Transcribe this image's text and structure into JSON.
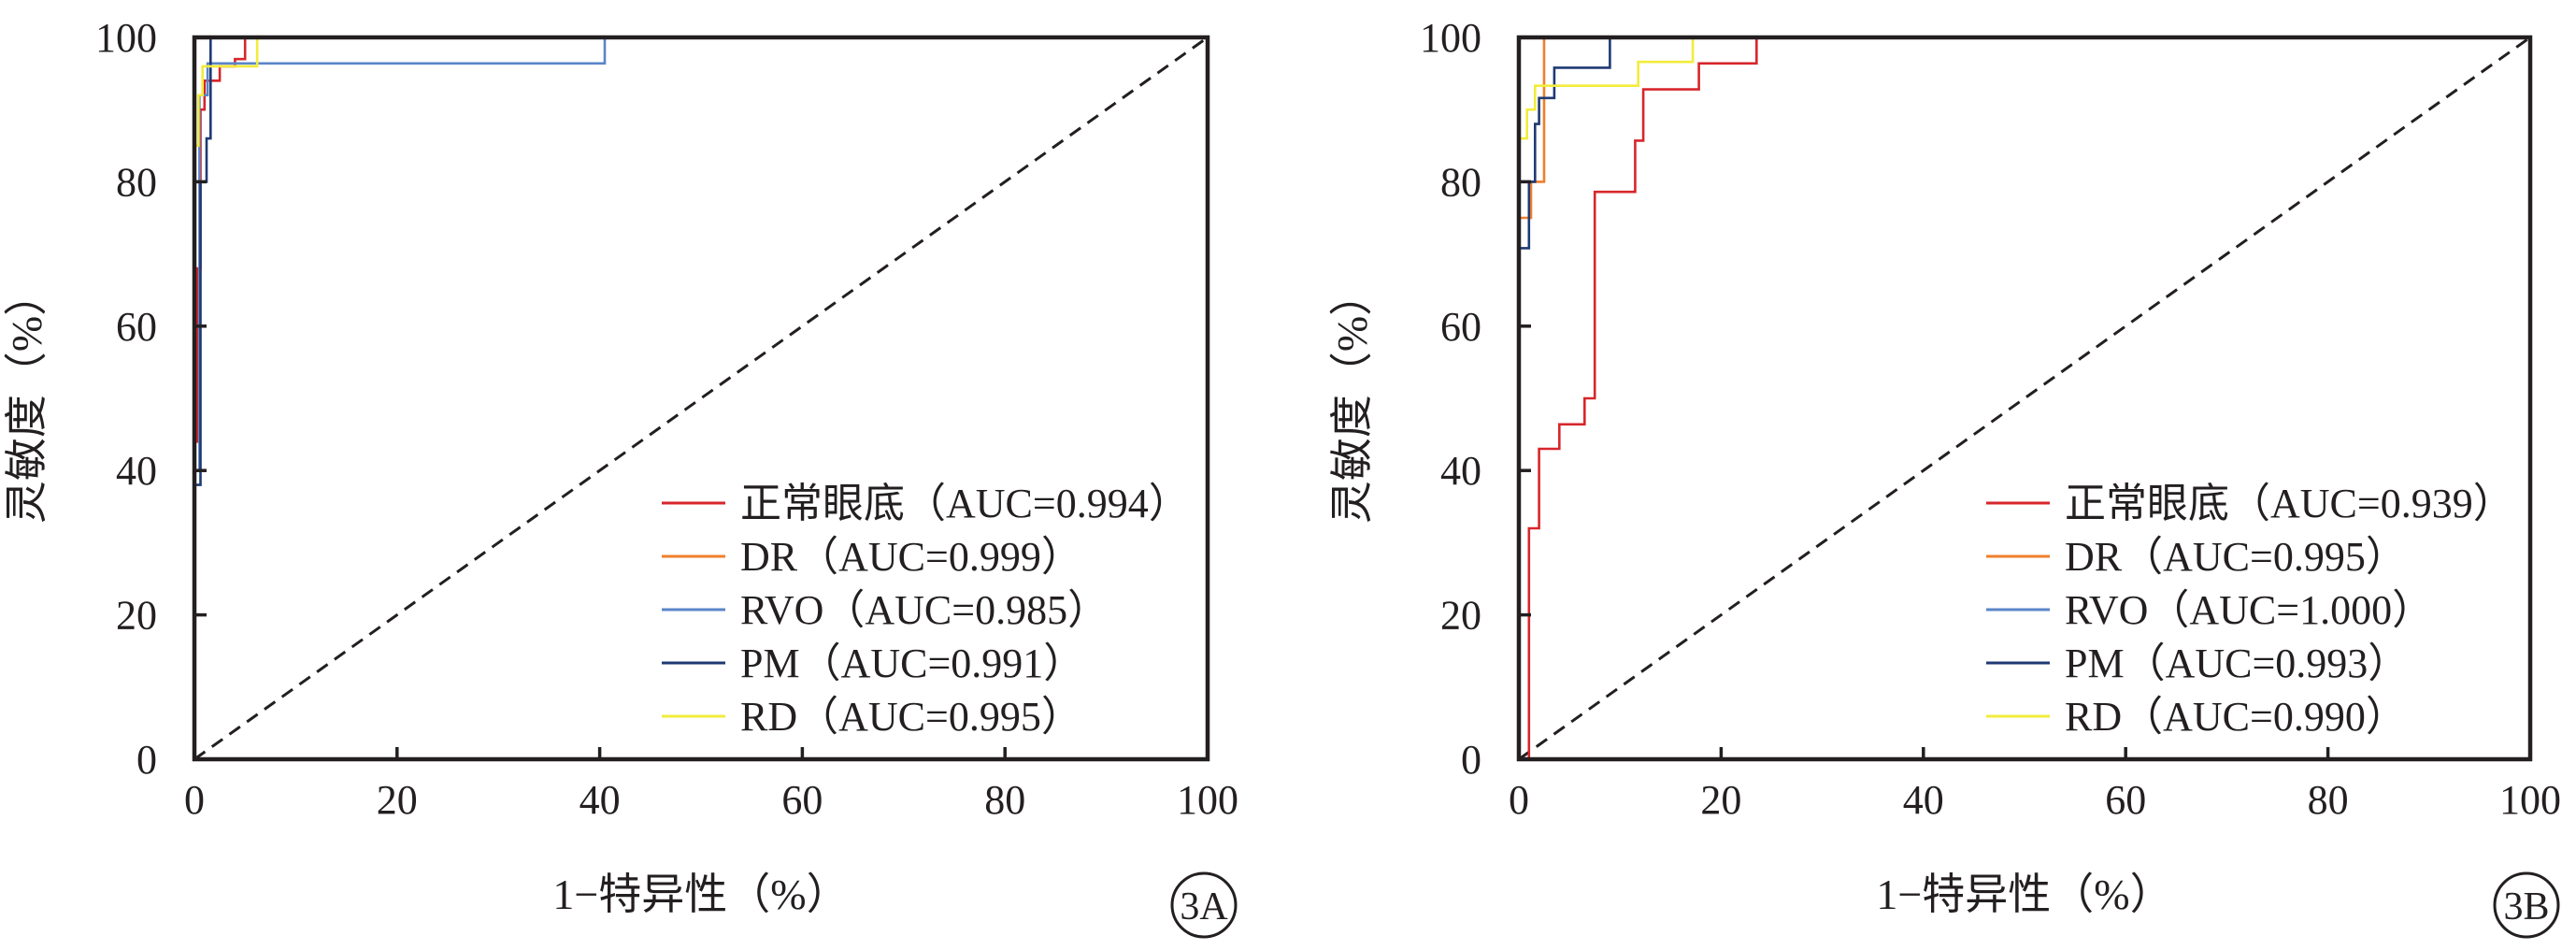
{
  "chart_data": [
    {
      "type": "line",
      "panel_label": "3A",
      "xlabel": "1−特异性（%）",
      "ylabel": "灵敏度（%）",
      "xlim": [
        0,
        100
      ],
      "ylim": [
        0,
        100
      ],
      "x_ticks": [
        "0",
        "20",
        "40",
        "60",
        "80",
        "100"
      ],
      "y_ticks": [
        "0",
        "20",
        "40",
        "60",
        "80",
        "100"
      ],
      "legend_position": "bottom-right",
      "reference_line": {
        "from": [
          0,
          0
        ],
        "to": [
          100,
          100
        ],
        "style": "dashed",
        "color": "#231f20"
      },
      "series": [
        {
          "name": "正常眼底（AUC=0.994）",
          "color": "#d7262b",
          "points": [
            [
              0,
              0
            ],
            [
              0,
              44
            ],
            [
              0.3,
              44
            ],
            [
              0.3,
              68
            ],
            [
              0.6,
              68
            ],
            [
              0.6,
              90
            ],
            [
              1.0,
              90
            ],
            [
              1.0,
              94
            ],
            [
              2.5,
              94
            ],
            [
              2.5,
              96
            ],
            [
              4.0,
              96
            ],
            [
              4.0,
              97
            ],
            [
              5.0,
              97
            ],
            [
              5.0,
              100
            ],
            [
              100,
              100
            ]
          ]
        },
        {
          "name": "DR（AUC=0.999）",
          "color": "#f07f2a",
          "points": [
            [
              0,
              0
            ],
            [
              0,
              100
            ],
            [
              100,
              100
            ]
          ]
        },
        {
          "name": "RVO（AUC=0.985）",
          "color": "#5a85c8",
          "points": [
            [
              0,
              0
            ],
            [
              0,
              40
            ],
            [
              0.5,
              40
            ],
            [
              0.5,
              92
            ],
            [
              1.3,
              92
            ],
            [
              1.3,
              96.4
            ],
            [
              40.5,
              96.4
            ],
            [
              40.5,
              100
            ],
            [
              100,
              100
            ]
          ]
        },
        {
          "name": "PM（AUC=0.991）",
          "color": "#1f3a73",
          "points": [
            [
              0,
              0
            ],
            [
              0,
              38
            ],
            [
              0.6,
              38
            ],
            [
              0.6,
              80
            ],
            [
              1.2,
              80
            ],
            [
              1.2,
              86
            ],
            [
              1.6,
              86
            ],
            [
              1.6,
              100
            ],
            [
              100,
              100
            ]
          ]
        },
        {
          "name": "RD（AUC=0.995）",
          "color": "#f2ec3c",
          "points": [
            [
              0,
              0
            ],
            [
              0,
              85
            ],
            [
              0.4,
              85
            ],
            [
              0.4,
              92
            ],
            [
              0.8,
              92
            ],
            [
              0.8,
              96
            ],
            [
              6.2,
              96
            ],
            [
              6.2,
              100
            ],
            [
              100,
              100
            ]
          ]
        }
      ]
    },
    {
      "type": "line",
      "panel_label": "3B",
      "xlabel": "1−特异性（%）",
      "ylabel": "灵敏度（%）",
      "xlim": [
        0,
        100
      ],
      "ylim": [
        0,
        100
      ],
      "x_ticks": [
        "0",
        "20",
        "40",
        "60",
        "80",
        "100"
      ],
      "y_ticks": [
        "0",
        "20",
        "40",
        "60",
        "80",
        "100"
      ],
      "legend_position": "bottom-right",
      "reference_line": {
        "from": [
          0,
          0
        ],
        "to": [
          100,
          100
        ],
        "style": "dashed",
        "color": "#231f20"
      },
      "series": [
        {
          "name": "正常眼底（AUC=0.939）",
          "color": "#d7262b",
          "points": [
            [
              0,
              0
            ],
            [
              1.0,
              0
            ],
            [
              1.0,
              32
            ],
            [
              2.0,
              32
            ],
            [
              2.0,
              43
            ],
            [
              4.0,
              43
            ],
            [
              4.0,
              46.4
            ],
            [
              6.5,
              46.4
            ],
            [
              6.5,
              50
            ],
            [
              7.5,
              50
            ],
            [
              7.5,
              78.6
            ],
            [
              11.5,
              78.6
            ],
            [
              11.5,
              85.7
            ],
            [
              12.3,
              85.7
            ],
            [
              12.3,
              92.8
            ],
            [
              17.8,
              92.8
            ],
            [
              17.8,
              96.4
            ],
            [
              23.5,
              96.4
            ],
            [
              23.5,
              100
            ],
            [
              100,
              100
            ]
          ]
        },
        {
          "name": "DR（AUC=0.995）",
          "color": "#f07f2a",
          "points": [
            [
              0,
              0
            ],
            [
              0,
              75
            ],
            [
              1.2,
              75
            ],
            [
              1.2,
              80
            ],
            [
              2.5,
              80
            ],
            [
              2.5,
              100
            ],
            [
              100,
              100
            ]
          ]
        },
        {
          "name": "RVO（AUC=1.000）",
          "color": "#5a85c8",
          "points": [
            [
              0,
              0
            ],
            [
              0,
              100
            ],
            [
              100,
              100
            ]
          ]
        },
        {
          "name": "PM（AUC=0.993）",
          "color": "#1f3a73",
          "points": [
            [
              0,
              0
            ],
            [
              0,
              70.8
            ],
            [
              1.0,
              70.8
            ],
            [
              1.0,
              80
            ],
            [
              1.6,
              80
            ],
            [
              1.6,
              88
            ],
            [
              2.0,
              88
            ],
            [
              2.0,
              91.6
            ],
            [
              3.5,
              91.6
            ],
            [
              3.5,
              95.8
            ],
            [
              9.0,
              95.8
            ],
            [
              9.0,
              100
            ],
            [
              100,
              100
            ]
          ]
        },
        {
          "name": "RD（AUC=0.990）",
          "color": "#f2ec3c",
          "points": [
            [
              0,
              0
            ],
            [
              0,
              86
            ],
            [
              0.8,
              86
            ],
            [
              0.8,
              90
            ],
            [
              1.6,
              90
            ],
            [
              1.6,
              93.3
            ],
            [
              11.8,
              93.3
            ],
            [
              11.8,
              96.6
            ],
            [
              17.2,
              96.6
            ],
            [
              17.2,
              100
            ],
            [
              100,
              100
            ]
          ]
        }
      ]
    }
  ]
}
